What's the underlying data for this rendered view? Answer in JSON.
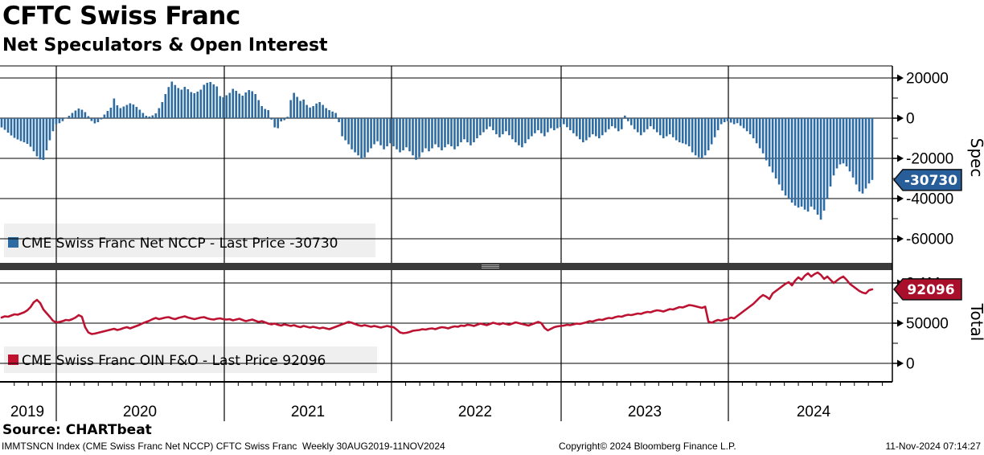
{
  "title": "CFTC Swiss Franc",
  "subtitle": "Net Speculators & Open Interest",
  "source_line": "Source: CHARTbeat",
  "footer": {
    "left": "IMMTSNCN Index (CME Swiss Franc Net NCCP) CFTC Swiss Franc  Weekly 30AUG2019-11NOV2024",
    "center": "Copyright© 2024 Bloomberg Finance L.P.",
    "right": "11-Nov-2024 07:14:27"
  },
  "x_axis": {
    "year_labels": [
      "2019",
      "2020",
      "2021",
      "2022",
      "2023",
      "2024"
    ]
  },
  "panels": {
    "spec": {
      "legend_label": "CME Swiss Franc Net NCCP - Last Price -30730",
      "axis_title": "Spec",
      "badge_label": "-30730",
      "badge_value": -30730,
      "bar_color": "#2d6ba3",
      "badge_color": "#275d99",
      "legend_bg": "#efefef",
      "ticks": [
        {
          "label": "20000",
          "value": 20000
        },
        {
          "label": "0",
          "value": 0
        },
        {
          "label": "-20000",
          "value": -20000
        },
        {
          "label": "-40000",
          "value": -40000
        },
        {
          "label": "-60000",
          "value": -60000
        }
      ],
      "minor_ticks": [
        10000,
        -10000,
        -30000,
        -50000
      ]
    },
    "total": {
      "legend_label": "CME Swiss Franc OIN F&O - Last Price 92096",
      "axis_title": "Total",
      "badge_label": "92096",
      "badge_value": 92096,
      "line_color": "#bc1332",
      "swatch_color": "#c0122f",
      "badge_color": "#a90e2b",
      "legend_bg": "#efefef",
      "ticks": [
        {
          "label": "0.1M",
          "value": 100000
        },
        {
          "label": "50000",
          "value": 50000
        },
        {
          "label": "0",
          "value": 0
        }
      ],
      "minor_ticks": [
        75000,
        25000
      ]
    }
  },
  "chart_data": [
    {
      "type": "bar",
      "title": "CME Swiss Franc Net NCCP",
      "ylabel": "Spec",
      "frequency": "Weekly",
      "x_start": "30AUG2019",
      "x_end": "11NOV2024",
      "last_price": -30730,
      "ylim": [
        -72000,
        26000
      ],
      "yticks": [
        20000,
        0,
        -20000,
        -40000,
        -60000
      ],
      "values": [
        -4600,
        -5800,
        -7200,
        -8600,
        -9800,
        -10600,
        -11400,
        -12000,
        -12800,
        -14200,
        -16500,
        -19000,
        -20500,
        -20800,
        -16000,
        -11000,
        -6500,
        -3000,
        -2500,
        -1500,
        -200,
        1200,
        2600,
        3800,
        4800,
        4200,
        3000,
        1000,
        -1400,
        -2600,
        -2000,
        -600,
        1800,
        3600,
        5200,
        9800,
        6400,
        5000,
        5800,
        6600,
        7400,
        6800,
        5600,
        4200,
        2600,
        1200,
        800,
        1400,
        2400,
        5000,
        8000,
        12000,
        15500,
        18200,
        16500,
        15000,
        14200,
        15600,
        14400,
        13000,
        12400,
        13200,
        14200,
        16600,
        17600,
        18000,
        16800,
        15800,
        11000,
        10400,
        11400,
        12600,
        14600,
        13600,
        12200,
        11200,
        12800,
        14000,
        13400,
        12000,
        9000,
        6000,
        4600,
        4000,
        -700,
        -4600,
        -5000,
        -1600,
        -1000,
        700,
        9000,
        12600,
        10600,
        8600,
        9300,
        6600,
        5300,
        6000,
        7300,
        8000,
        6600,
        5000,
        4000,
        3300,
        2600,
        -2000,
        -9000,
        -11000,
        -13000,
        -15500,
        -17000,
        -18500,
        -20300,
        -19500,
        -17000,
        -15000,
        -13000,
        -11500,
        -13500,
        -15500,
        -14000,
        -12500,
        -14000,
        -15500,
        -17000,
        -16000,
        -14500,
        -16500,
        -18500,
        -20700,
        -19500,
        -17000,
        -15000,
        -16500,
        -15000,
        -13000,
        -14500,
        -16000,
        -14500,
        -13000,
        -14000,
        -15500,
        -14000,
        -12000,
        -10500,
        -12000,
        -13500,
        -12000,
        -10000,
        -8500,
        -7000,
        -5500,
        -4200,
        -6000,
        -8000,
        -9500,
        -8000,
        -6500,
        -8500,
        -10500,
        -12000,
        -13500,
        -14500,
        -12500,
        -10500,
        -9000,
        -7500,
        -6000,
        -7500,
        -9000,
        -7000,
        -5000,
        -6000,
        -5000,
        -4500,
        -3000,
        -4500,
        -6000,
        -7500,
        -9000,
        -10500,
        -12000,
        -11000,
        -9500,
        -8000,
        -9000,
        -10000,
        -8500,
        -7000,
        -5500,
        -4000,
        -5000,
        -6500,
        -5500,
        1300,
        -1500,
        -3500,
        -5500,
        -7000,
        -8500,
        -7000,
        -5500,
        -4000,
        -5500,
        -7000,
        -8500,
        -10000,
        -9000,
        -8000,
        -9500,
        -11000,
        -12000,
        -12500,
        -13000,
        -14000,
        -17000,
        -18500,
        -19500,
        -20000,
        -18500,
        -16000,
        -13000,
        -9500,
        -6000,
        -3000,
        -2000,
        -1500,
        -2200,
        -3000,
        -2500,
        -3800,
        -5000,
        -6500,
        -8000,
        -10000,
        -12500,
        -15000,
        -17500,
        -21000,
        -24000,
        -27000,
        -30000,
        -33000,
        -36000,
        -38500,
        -40000,
        -42000,
        -43500,
        -44500,
        -44000,
        -45500,
        -46500,
        -44000,
        -45500,
        -48000,
        -50500,
        -46000,
        -40000,
        -34000,
        -28500,
        -25000,
        -23000,
        -22500,
        -24000,
        -26500,
        -29500,
        -33000,
        -36500,
        -37500,
        -35000,
        -32500,
        -30730
      ]
    },
    {
      "type": "line",
      "title": "CME Swiss Franc OIN F&O",
      "ylabel": "Total",
      "frequency": "Weekly",
      "x_start": "30AUG2019",
      "x_end": "11NOV2024",
      "last_price": 92096,
      "ylim": [
        -24000,
        121000
      ],
      "yticks": [
        100000,
        50000,
        0
      ],
      "values": [
        57000,
        58500,
        58000,
        59500,
        61000,
        60500,
        62000,
        63500,
        66000,
        70000,
        76000,
        79000,
        75000,
        67000,
        62500,
        58000,
        53000,
        51000,
        51500,
        52500,
        54000,
        53500,
        55000,
        57000,
        60000,
        58000,
        45000,
        38500,
        36500,
        37000,
        38000,
        39000,
        40000,
        41000,
        42000,
        43000,
        41500,
        42500,
        44000,
        45000,
        43500,
        45000,
        46500,
        48000,
        50000,
        51500,
        53000,
        55000,
        56500,
        55000,
        56000,
        57000,
        57500,
        56000,
        55000,
        56500,
        57500,
        58500,
        57000,
        56000,
        55000,
        56000,
        57000,
        57500,
        56000,
        55000,
        54500,
        55500,
        56000,
        55000,
        54500,
        55000,
        53500,
        54500,
        55500,
        54000,
        52500,
        53500,
        54500,
        53000,
        51500,
        52500,
        51000,
        49500,
        48500,
        49500,
        48000,
        47000,
        48500,
        47500,
        46500,
        47500,
        46000,
        45000,
        46500,
        45500,
        44500,
        45500,
        44500,
        43500,
        44500,
        43500,
        42500,
        44000,
        45500,
        47000,
        48500,
        50000,
        51500,
        50500,
        49000,
        47500,
        46500,
        47500,
        46500,
        45500,
        46500,
        45500,
        44500,
        45500,
        46500,
        45500,
        45000,
        42000,
        38500,
        37500,
        38000,
        39000,
        40500,
        41000,
        41500,
        42500,
        42000,
        43000,
        43500,
        42500,
        44000,
        45000,
        44500,
        43500,
        45000,
        46000,
        45500,
        47000,
        46500,
        48000,
        47500,
        46500,
        48000,
        49500,
        48500,
        47500,
        49000,
        50500,
        49500,
        48500,
        50000,
        49000,
        48000,
        49500,
        51000,
        50000,
        49000,
        48000,
        47000,
        48500,
        50000,
        51500,
        50000,
        44000,
        41000,
        43000,
        45000,
        46000,
        46500,
        47000,
        48000,
        47500,
        48500,
        49500,
        49000,
        50000,
        51000,
        52500,
        52000,
        53500,
        54500,
        54000,
        55500,
        56500,
        56000,
        57500,
        58500,
        58000,
        59500,
        60500,
        60000,
        61000,
        62000,
        61500,
        63000,
        64000,
        63500,
        65000,
        66000,
        65500,
        64500,
        66000,
        67500,
        67000,
        68500,
        70000,
        69500,
        71000,
        72500,
        72000,
        71000,
        70000,
        69000,
        70500,
        52000,
        50500,
        52500,
        54000,
        53000,
        54500,
        55000,
        57000,
        56000,
        59000,
        62000,
        65000,
        68000,
        71000,
        74000,
        78000,
        82000,
        85000,
        83000,
        80000,
        87000,
        90000,
        93000,
        96000,
        99000,
        101000,
        97000,
        103000,
        107000,
        104000,
        109000,
        112000,
        108000,
        111000,
        113000,
        110000,
        105000,
        108000,
        104000,
        100000,
        103000,
        106000,
        108000,
        104000,
        99000,
        96000,
        93000,
        90000,
        88000,
        87000,
        91000,
        92096
      ]
    }
  ]
}
